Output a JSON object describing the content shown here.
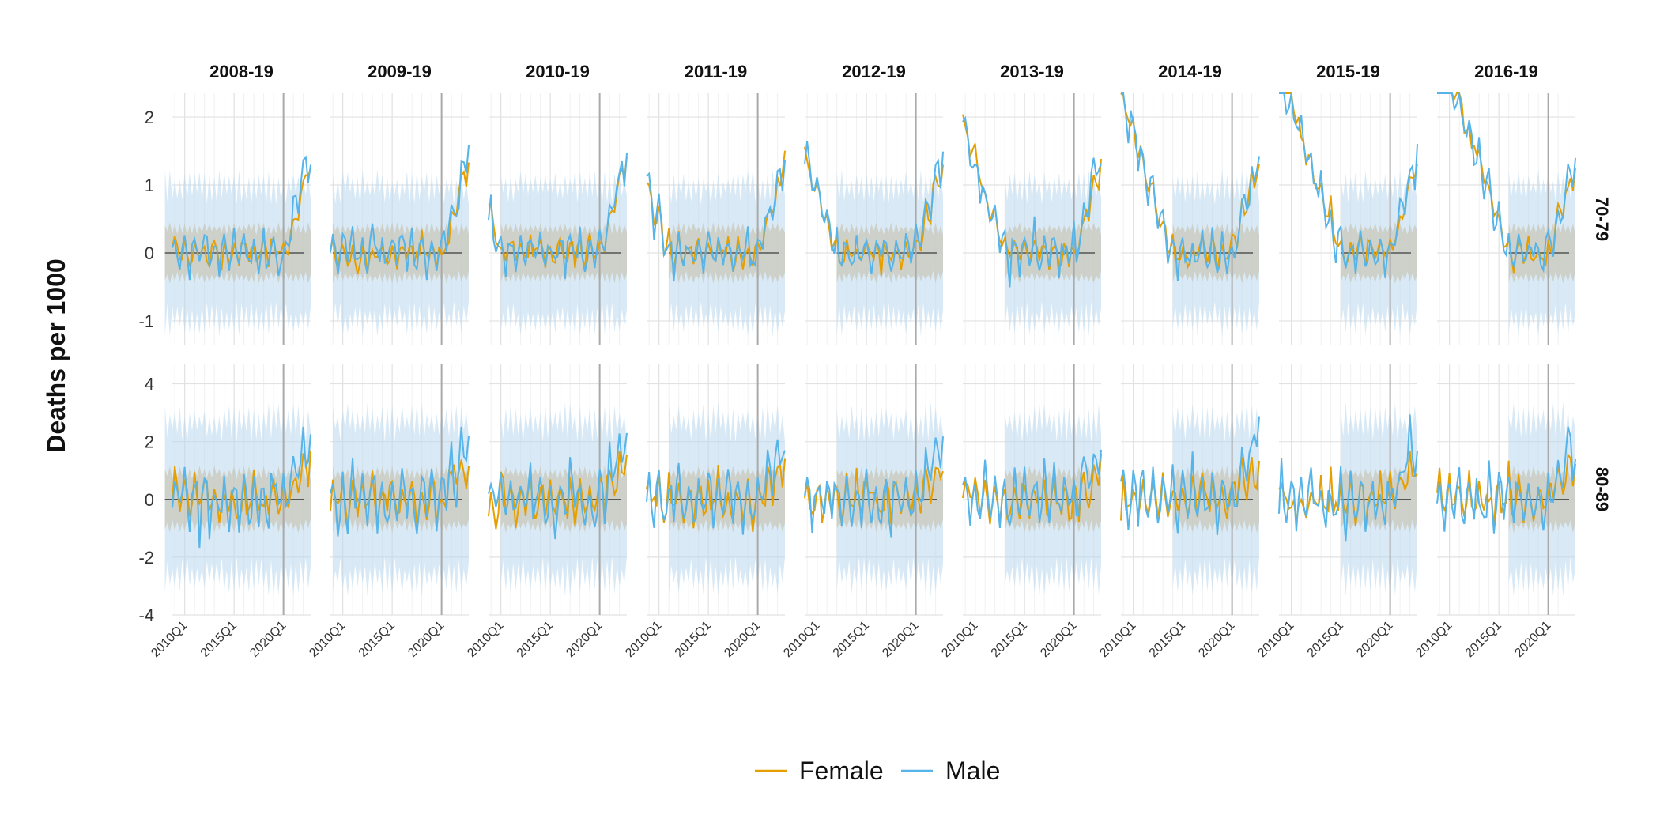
{
  "chart_data": {
    "type": "line",
    "title": "",
    "ylabel": "Deaths per 1000",
    "xlabel": "",
    "column_facets": [
      "2008-19",
      "2009-19",
      "2010-19",
      "2011-19",
      "2012-19",
      "2013-19",
      "2014-19",
      "2015-19",
      "2016-19"
    ],
    "row_facets": [
      {
        "label": "70-79",
        "ylim": [
          -1.35,
          2.35
        ],
        "yticks": [
          -1,
          0,
          1,
          2
        ],
        "band": [
          0.35,
          0.95
        ]
      },
      {
        "label": "80-89",
        "ylim": [
          -4.0,
          4.7
        ],
        "yticks": [
          -4,
          -2,
          0,
          2,
          4
        ],
        "band": [
          0.9,
          2.6
        ]
      }
    ],
    "x_tick_labels": [
      "2010Q1",
      "2015Q1",
      "2020Q1"
    ],
    "x_range": [
      "2008Q4",
      "2022Q4"
    ],
    "vertical_marker": "2020Q1",
    "legend": {
      "position": "bottom",
      "entries": [
        {
          "name": "Female",
          "color": "#E69F00"
        },
        {
          "name": "Male",
          "color": "#56B4E9"
        }
      ]
    },
    "colors": {
      "female": "#E69F00",
      "male": "#56B4E9",
      "band_female": "#d9c9a3",
      "band_male": "#b9d9ee",
      "marker": "#aaaaaa",
      "zero_line": "#555555"
    },
    "approximate_values_note": "",
    "series_summary": [
      {
        "row": "70-79",
        "female": {
          "start": 0.1,
          "end": 1.5,
          "pre2020_level": 0.0,
          "peak": 1.5
        },
        "male": {
          "start": 0.1,
          "end": 1.6,
          "pre2020_level": 0.0,
          "peak": 1.9
        }
      },
      {
        "row": "80-89",
        "female": {
          "start": -1.2,
          "end": 1.4,
          "pre2020_level": 0.0,
          "peak": 2.6
        },
        "male": {
          "start": -0.6,
          "end": 2.4,
          "pre2020_level": 0.0,
          "peak": 3.8
        }
      }
    ]
  },
  "legend_labels": {
    "female": "Female",
    "male": "Male"
  },
  "y_axis_title": "Deaths per 1000"
}
